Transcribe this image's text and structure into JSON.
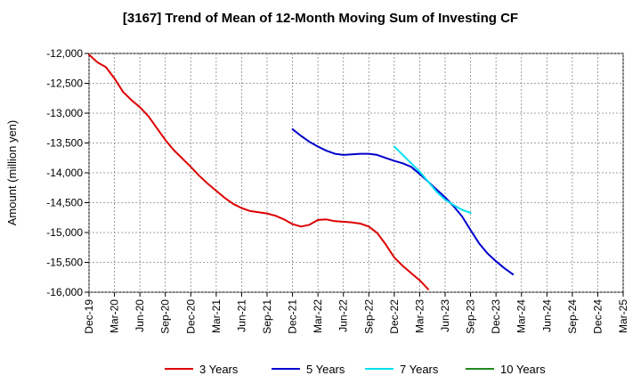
{
  "chart_data": {
    "type": "line",
    "title": "[3167]  Trend of Mean of 12-Month Moving Sum of Investing CF",
    "ylabel": "Amount (million yen)",
    "xlabel": "",
    "ylim": [
      -16000,
      -12000
    ],
    "yticks": [
      -12000,
      -12500,
      -13000,
      -13500,
      -14000,
      -14500,
      -15000,
      -15500,
      -16000
    ],
    "ytick_labels": [
      "-12,000",
      "-12,500",
      "-13,000",
      "-13,500",
      "-14,000",
      "-14,500",
      "-15,000",
      "-15,500",
      "-16,000"
    ],
    "categories": [
      "Dec-19",
      "Mar-20",
      "Jun-20",
      "Sep-20",
      "Dec-20",
      "Mar-21",
      "Jun-21",
      "Sep-21",
      "Dec-21",
      "Mar-22",
      "Jun-22",
      "Sep-22",
      "Dec-22",
      "Mar-23",
      "Jun-23",
      "Sep-23",
      "Dec-23",
      "Mar-24",
      "Jun-24",
      "Sep-24",
      "Dec-24",
      "Mar-25"
    ],
    "grid": true,
    "legend_position": "bottom",
    "series": [
      {
        "name": "3 Years",
        "color": "#dd0000",
        "points": [
          [
            0,
            -12020
          ],
          [
            1,
            -12150
          ],
          [
            2,
            -12230
          ],
          [
            3,
            -12420
          ],
          [
            4,
            -12640
          ],
          [
            5,
            -12780
          ],
          [
            6,
            -12900
          ],
          [
            7,
            -13050
          ],
          [
            8,
            -13250
          ],
          [
            9,
            -13450
          ],
          [
            10,
            -13620
          ],
          [
            11,
            -13760
          ],
          [
            12,
            -13900
          ],
          [
            13,
            -14050
          ],
          [
            14,
            -14180
          ],
          [
            15,
            -14300
          ],
          [
            16,
            -14420
          ],
          [
            17,
            -14520
          ],
          [
            18,
            -14590
          ],
          [
            19,
            -14640
          ],
          [
            20,
            -14660
          ],
          [
            21,
            -14680
          ],
          [
            22,
            -14720
          ],
          [
            23,
            -14780
          ],
          [
            24,
            -14860
          ],
          [
            25,
            -14900
          ],
          [
            26,
            -14870
          ],
          [
            27,
            -14790
          ],
          [
            28,
            -14780
          ],
          [
            29,
            -14810
          ],
          [
            30,
            -14820
          ],
          [
            31,
            -14830
          ],
          [
            32,
            -14850
          ],
          [
            33,
            -14900
          ],
          [
            34,
            -15010
          ],
          [
            35,
            -15200
          ],
          [
            36,
            -15420
          ],
          [
            37,
            -15560
          ],
          [
            38,
            -15680
          ],
          [
            39,
            -15800
          ],
          [
            40,
            -15950
          ]
        ]
      },
      {
        "name": "5 Years",
        "color": "#0000cc",
        "points": [
          [
            24,
            -13270
          ],
          [
            25,
            -13380
          ],
          [
            26,
            -13480
          ],
          [
            27,
            -13560
          ],
          [
            28,
            -13630
          ],
          [
            29,
            -13680
          ],
          [
            30,
            -13700
          ],
          [
            31,
            -13690
          ],
          [
            32,
            -13680
          ],
          [
            33,
            -13680
          ],
          [
            34,
            -13700
          ],
          [
            35,
            -13750
          ],
          [
            36,
            -13800
          ],
          [
            37,
            -13840
          ],
          [
            38,
            -13900
          ],
          [
            39,
            -14020
          ],
          [
            40,
            -14150
          ],
          [
            41,
            -14280
          ],
          [
            42,
            -14410
          ],
          [
            43,
            -14560
          ],
          [
            44,
            -14730
          ],
          [
            45,
            -14960
          ],
          [
            46,
            -15180
          ],
          [
            47,
            -15350
          ],
          [
            48,
            -15480
          ],
          [
            49,
            -15600
          ],
          [
            50,
            -15700
          ]
        ]
      },
      {
        "name": "7 Years",
        "color": "#00e0f0",
        "points": [
          [
            36,
            -13560
          ],
          [
            37,
            -13700
          ],
          [
            38,
            -13840
          ],
          [
            39,
            -13980
          ],
          [
            40,
            -14150
          ],
          [
            41,
            -14320
          ],
          [
            42,
            -14450
          ],
          [
            43,
            -14540
          ],
          [
            44,
            -14620
          ],
          [
            45,
            -14670
          ]
        ]
      },
      {
        "name": "10 Years",
        "color": "#228822",
        "points": []
      }
    ]
  }
}
